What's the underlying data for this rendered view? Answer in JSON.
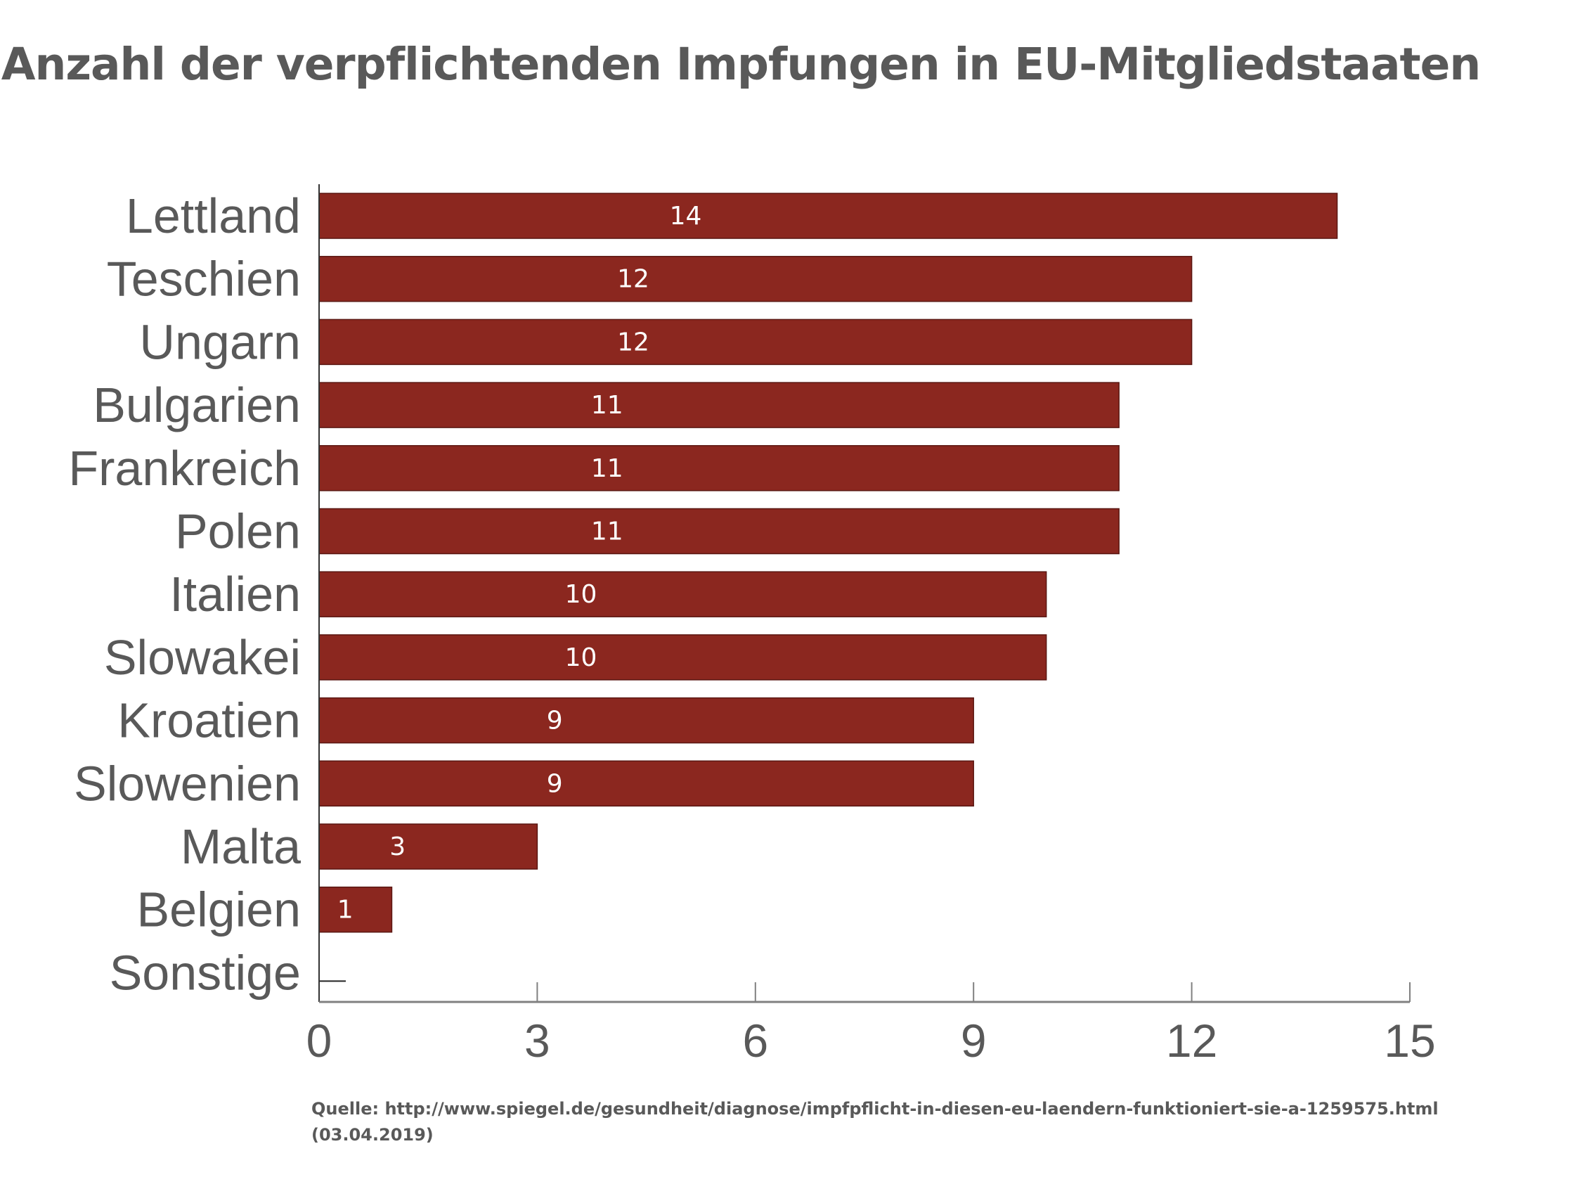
{
  "title": "Anzahl der verpflichtenden Impfungen in EU-Mitgliedstaaten",
  "source": {
    "line1": "Quelle: http://www.spiegel.de/gesundheit/diagnose/impfpflicht-in-diesen-eu-laendern-funktioniert-sie-a-1259575.html",
    "line2": "(03.04.2019)"
  },
  "chart_data": {
    "type": "bar",
    "orientation": "horizontal",
    "title": "Anzahl der verpflichtenden Impfungen in EU-Mitgliedstaaten",
    "xlabel": "",
    "ylabel": "",
    "categories": [
      "Lettland",
      "Teschien",
      "Ungarn",
      "Bulgarien",
      "Frankreich",
      "Polen",
      "Italien",
      "Slowakei",
      "Kroatien",
      "Slowenien",
      "Malta",
      "Belgien",
      "Sonstige"
    ],
    "values": [
      14,
      12,
      12,
      11,
      11,
      11,
      10,
      10,
      9,
      9,
      3,
      1,
      0
    ],
    "data_labels": [
      "14",
      "12",
      "12",
      "11",
      "11",
      "11",
      "10",
      "10",
      "9",
      "9",
      "3",
      "1",
      ""
    ],
    "xlim": [
      0,
      15
    ],
    "xticks": [
      0,
      3,
      6,
      9,
      12,
      15
    ],
    "xtick_labels": [
      "0",
      "3",
      "6",
      "9",
      "12",
      "15"
    ],
    "grid": false,
    "colors": {
      "bar": "#8B271F",
      "bar_edge": "#5a1712",
      "text": "#595959",
      "axis": "#808080",
      "label": "#ffffff"
    }
  }
}
